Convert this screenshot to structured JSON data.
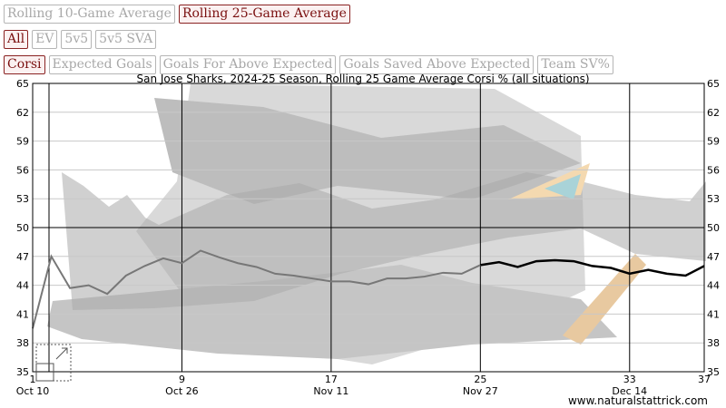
{
  "window_buttons": [
    {
      "label": "Rolling 10-Game Average",
      "active": false
    },
    {
      "label": "Rolling 25-Game Average",
      "active": true
    }
  ],
  "situation_buttons": [
    {
      "label": "All",
      "active": true
    },
    {
      "label": "EV",
      "active": false
    },
    {
      "label": "5v5",
      "active": false
    },
    {
      "label": "5v5 SVA",
      "active": false
    }
  ],
  "metric_buttons": [
    {
      "label": "Corsi",
      "active": true
    },
    {
      "label": "Expected Goals",
      "active": false
    },
    {
      "label": "Goals For Above Expected",
      "active": false
    },
    {
      "label": "Goals Saved Above Expected",
      "active": false
    },
    {
      "label": "Team SV%",
      "active": false
    }
  ],
  "credit": "www.naturalstattrick.com",
  "chart_data": {
    "type": "line",
    "title": "San Jose Sharks, 2024-25 Season, Rolling 25 Game Average Corsi % (all situations)",
    "xlim": [
      1,
      37
    ],
    "ylim": [
      35,
      65
    ],
    "y_ticks": [
      35,
      38,
      41,
      44,
      47,
      50,
      53,
      56,
      59,
      62,
      65
    ],
    "x_ticks": [
      {
        "game": 1,
        "label": "1",
        "date": "Oct 10"
      },
      {
        "game": 9,
        "label": "9",
        "date": "Oct 26"
      },
      {
        "game": 17,
        "label": "17",
        "date": "Nov 11"
      },
      {
        "game": 25,
        "label": "25",
        "date": "Nov 27"
      },
      {
        "game": 33,
        "label": "33",
        "date": "Dec 14"
      },
      {
        "game": 37,
        "label": "37",
        "date": ""
      }
    ],
    "reference_line": 50,
    "grid": true,
    "series": [
      {
        "name": "",
        "color": "#777777",
        "x": [
          1,
          2,
          3,
          4,
          5,
          6,
          7,
          8,
          9,
          10,
          11,
          12,
          13,
          14,
          15,
          16,
          17,
          18,
          19,
          20,
          21,
          22,
          23,
          24,
          25
        ],
        "y": [
          39.5,
          47.0,
          43.7,
          44.0,
          43.1,
          45.0,
          46.0,
          46.8,
          46.3,
          47.6,
          46.9,
          46.3,
          45.9,
          45.2,
          45.0,
          44.7,
          44.4,
          44.4,
          44.1,
          44.7,
          44.7,
          44.9,
          45.3,
          45.2,
          46.1
        ]
      },
      {
        "name": "",
        "color": "#000000",
        "x": [
          25,
          26,
          27,
          28,
          29,
          30,
          31,
          32,
          33,
          34,
          35,
          36,
          37
        ],
        "y": [
          46.1,
          46.4,
          45.9,
          46.5,
          46.6,
          46.5,
          46.0,
          45.8,
          45.2,
          45.6,
          45.2,
          45.0,
          46.0
        ]
      }
    ]
  }
}
